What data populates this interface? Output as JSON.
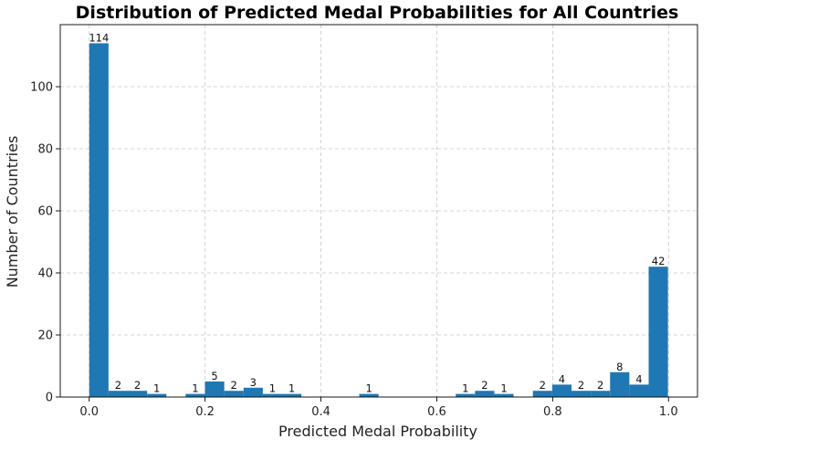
{
  "chart_data": {
    "type": "bar",
    "subtype": "histogram",
    "title": "Distribution of Predicted Medal Probabilities for All Countries",
    "xlabel": "Predicted Medal Probability",
    "ylabel": "Number of Countries",
    "xlim": [
      -0.05,
      1.05
    ],
    "ylim": [
      0,
      120
    ],
    "xticks": [
      0.0,
      0.2,
      0.4,
      0.6,
      0.8,
      1.0
    ],
    "xtick_labels": [
      "0.0",
      "0.2",
      "0.4",
      "0.6",
      "0.8",
      "1.0"
    ],
    "yticks": [
      0,
      20,
      40,
      60,
      80,
      100
    ],
    "ytick_labels": [
      "0",
      "20",
      "40",
      "60",
      "80",
      "100"
    ],
    "grid": true,
    "bar_color": "#1f77b4",
    "bin_start": 0.0,
    "bin_width": 0.0333,
    "values": [
      114,
      2,
      2,
      1,
      0,
      1,
      5,
      2,
      3,
      1,
      1,
      0,
      0,
      0,
      1,
      0,
      0,
      0,
      0,
      1,
      2,
      1,
      0,
      2,
      4,
      2,
      2,
      8,
      4,
      42
    ],
    "bar_labels": [
      "114",
      "2",
      "2",
      "1",
      "",
      "1",
      "5",
      "2",
      "3",
      "1",
      "1",
      "",
      "",
      "",
      "1",
      "",
      "",
      "",
      "",
      "1",
      "2",
      "1",
      "",
      "2",
      "4",
      "2",
      "2",
      "8",
      "4",
      "42"
    ]
  }
}
